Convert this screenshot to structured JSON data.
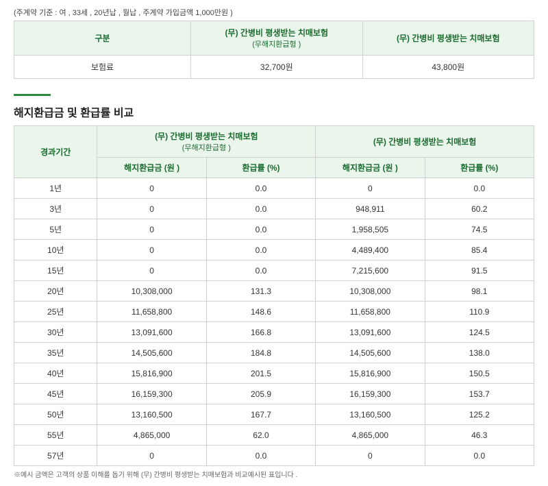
{
  "criteria": "(주계약 기준 : 여 , 33세 , 20년납 , 월납 , 주계약 가입금액 1,000만원 )",
  "premium": {
    "headers": {
      "category": "구분",
      "planA": "(무) 간병비 평생받는 치매보험",
      "planA_sub": "(무해지환급형 )",
      "planB": "(무) 간병비 평생받는 치매보험"
    },
    "rowLabel": "보험료",
    "valA": "32,700원",
    "valB": "43,800원"
  },
  "sectionTitle": "해지환급금 및 환급률 비교",
  "refund": {
    "headers": {
      "period": "경과기간",
      "planA": "(무) 간병비 평생받는 치매보험",
      "planA_sub": "(무해지환급형 )",
      "planB": "(무) 간병비 평생받는 치매보험",
      "refundAmt": "해지환급금 (원 )",
      "refundRate": "환급률 (%)"
    },
    "rows": [
      {
        "p": "1년",
        "a1": "0",
        "a2": "0.0",
        "b1": "0",
        "b2": "0.0"
      },
      {
        "p": "3년",
        "a1": "0",
        "a2": "0.0",
        "b1": "948,911",
        "b2": "60.2"
      },
      {
        "p": "5년",
        "a1": "0",
        "a2": "0.0",
        "b1": "1,958,505",
        "b2": "74.5"
      },
      {
        "p": "10년",
        "a1": "0",
        "a2": "0.0",
        "b1": "4,489,400",
        "b2": "85.4"
      },
      {
        "p": "15년",
        "a1": "0",
        "a2": "0.0",
        "b1": "7,215,600",
        "b2": "91.5"
      },
      {
        "p": "20년",
        "a1": "10,308,000",
        "a2": "131.3",
        "b1": "10,308,000",
        "b2": "98.1"
      },
      {
        "p": "25년",
        "a1": "11,658,800",
        "a2": "148.6",
        "b1": "11,658,800",
        "b2": "110.9"
      },
      {
        "p": "30년",
        "a1": "13,091,600",
        "a2": "166.8",
        "b1": "13,091,600",
        "b2": "124.5"
      },
      {
        "p": "35년",
        "a1": "14,505,600",
        "a2": "184.8",
        "b1": "14,505,600",
        "b2": "138.0"
      },
      {
        "p": "40년",
        "a1": "15,816,900",
        "a2": "201.5",
        "b1": "15,816,900",
        "b2": "150.5"
      },
      {
        "p": "45년",
        "a1": "16,159,300",
        "a2": "205.9",
        "b1": "16,159,300",
        "b2": "153.7"
      },
      {
        "p": "50년",
        "a1": "13,160,500",
        "a2": "167.7",
        "b1": "13,160,500",
        "b2": "125.2"
      },
      {
        "p": "55년",
        "a1": "4,865,000",
        "a2": "62.0",
        "b1": "4,865,000",
        "b2": "46.3"
      },
      {
        "p": "57년",
        "a1": "0",
        "a2": "0.0",
        "b1": "0",
        "b2": "0.0"
      }
    ]
  },
  "footnote": "※예시 금액은 고객의 상품 이해를 돕기 위해 (무) 간병비 평생받는 치매보험과 비교예시된 표입니다 ."
}
